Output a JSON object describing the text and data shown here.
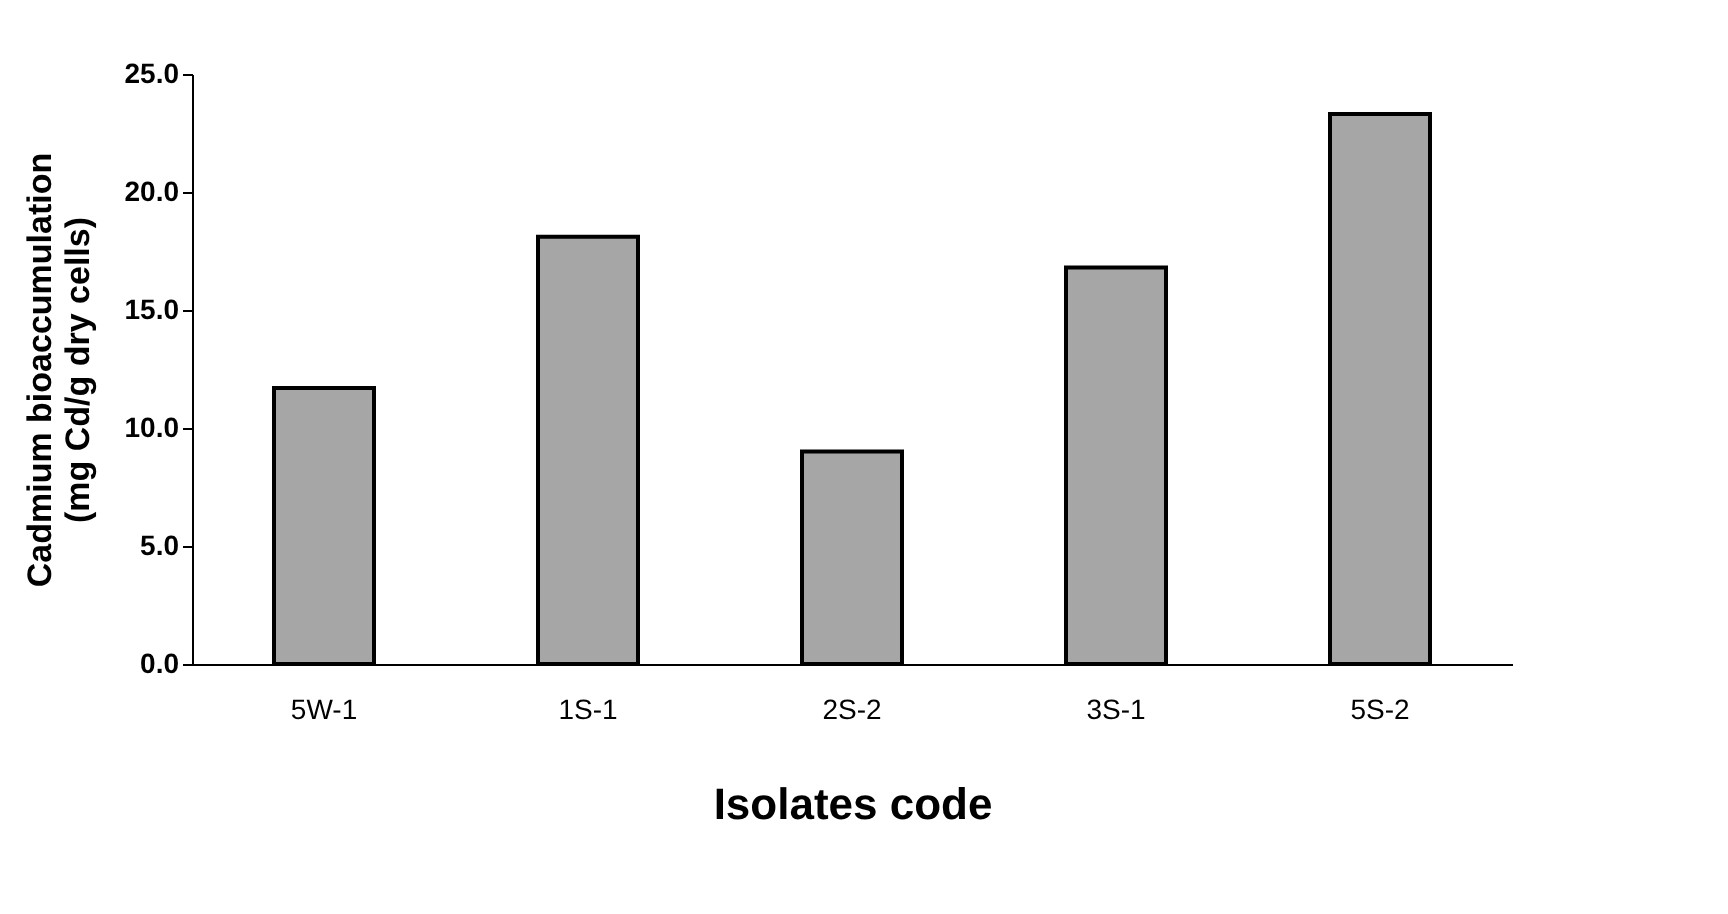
{
  "chart_data": {
    "type": "bar",
    "xlabel": "Isolates code",
    "ylabel": "Cadmium bioaccumulation\n(mg Cd/g dry cells)",
    "categories": [
      "5W-1",
      "1S-1",
      "2S-2",
      "3S-1",
      "5S-2"
    ],
    "values": [
      11.7,
      18.1,
      9.0,
      16.8,
      23.3
    ],
    "color": "#a6a6a6",
    "ylim": [
      0,
      25
    ],
    "yticks": [
      {
        "value": 0,
        "label": "0.0"
      },
      {
        "value": 5,
        "label": "5.0"
      },
      {
        "value": 10,
        "label": "10.0"
      },
      {
        "value": 15,
        "label": "15.0"
      },
      {
        "value": 20,
        "label": "20.0"
      },
      {
        "value": 25,
        "label": "25.0"
      }
    ],
    "grid": false
  }
}
